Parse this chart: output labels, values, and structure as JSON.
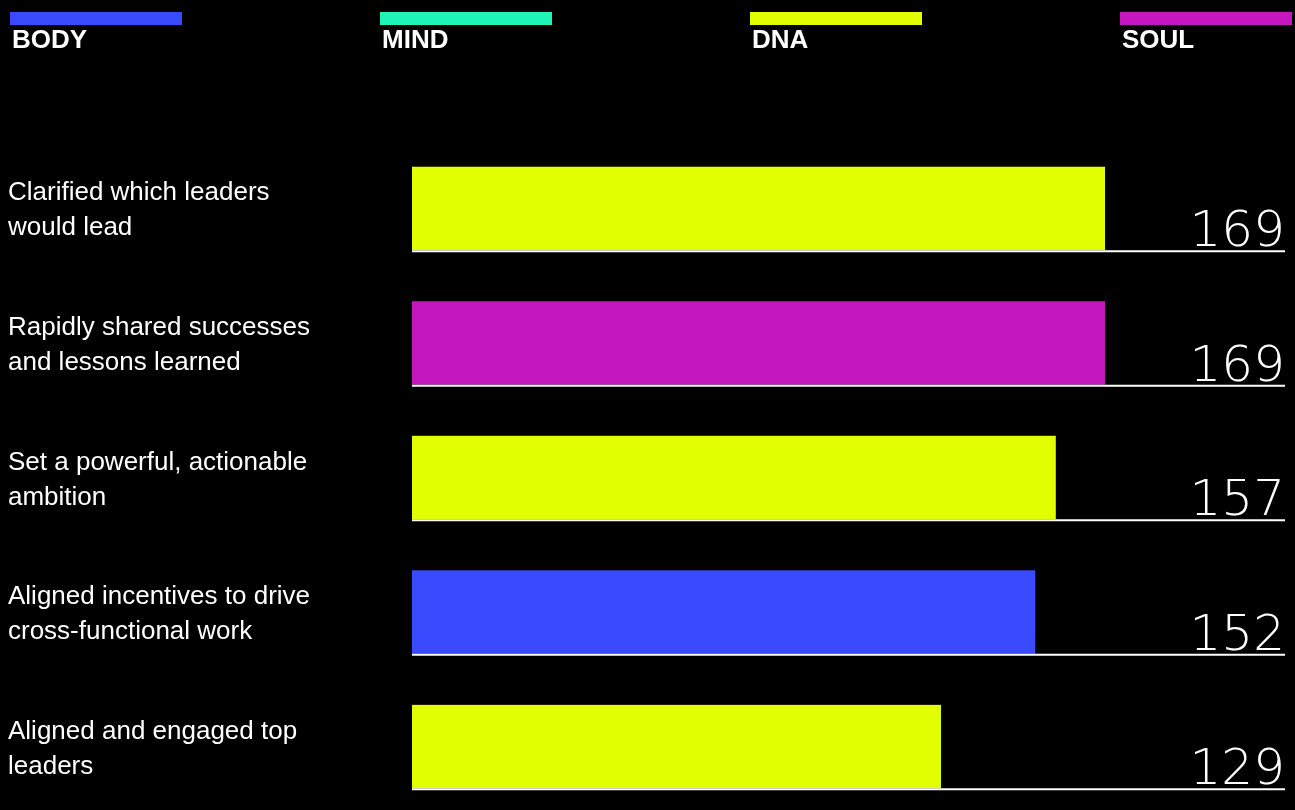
{
  "chart_data": {
    "type": "bar",
    "orientation": "horizontal",
    "data_labels": true,
    "legend": "top",
    "categories": [
      "Clarified which leaders would lead",
      "Rapidly shared successes and lessons learned",
      "Set a powerful, actionable ambition",
      "Aligned incentives to drive cross-functional work",
      "Aligned and engaged top leaders"
    ],
    "series": [
      {
        "name": "BODY",
        "color": "#3a4bff",
        "values": [
          null,
          null,
          null,
          152,
          null
        ]
      },
      {
        "name": "MIND",
        "color": "#1ef5b7",
        "values": [
          null,
          null,
          null,
          null,
          null
        ]
      },
      {
        "name": "DNA",
        "color": "#e1ff00",
        "values": [
          169,
          null,
          157,
          null,
          129
        ]
      },
      {
        "name": "SOUL",
        "color": "#c416be",
        "values": [
          null,
          169,
          null,
          null,
          null
        ]
      }
    ]
  }
}
